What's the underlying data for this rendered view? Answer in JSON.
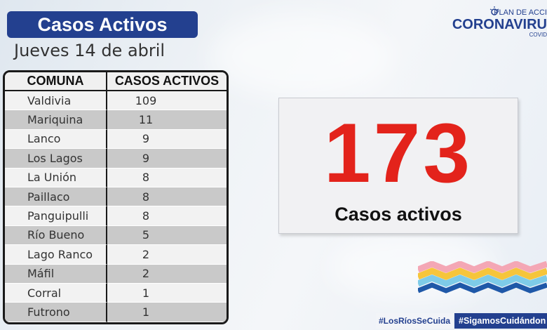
{
  "header": {
    "title": "Casos Activos",
    "date": "Jueves 14 de abril"
  },
  "logo": {
    "top_text": "PLAN DE ACCI",
    "main_text": "CORONAVIRU",
    "sub_text": "COVID"
  },
  "table": {
    "headers": [
      "COMUNA",
      "CASOS ACTIVOS"
    ],
    "rows": [
      {
        "comuna": "Valdivia",
        "casos": "109"
      },
      {
        "comuna": "Mariquina",
        "casos": "11"
      },
      {
        "comuna": "Lanco",
        "casos": "9"
      },
      {
        "comuna": "Los Lagos",
        "casos": "9"
      },
      {
        "comuna": "La Unión",
        "casos": "8"
      },
      {
        "comuna": "Paillaco",
        "casos": "8"
      },
      {
        "comuna": "Panguipulli",
        "casos": "8"
      },
      {
        "comuna": "Río Bueno",
        "casos": "5"
      },
      {
        "comuna": "Lago Ranco",
        "casos": "2"
      },
      {
        "comuna": "Máfil",
        "casos": "2"
      },
      {
        "comuna": "Corral",
        "casos": "1"
      },
      {
        "comuna": "Futrono",
        "casos": "1"
      }
    ]
  },
  "summary": {
    "total": "173",
    "label": "Casos activos"
  },
  "hashtags": {
    "first": "#LosRíosSeCuida",
    "second": "#SigamosCuidándon"
  },
  "colors": {
    "brand_blue": "#23408f",
    "accent_red": "#e3231b",
    "row_light": "#f2f2f2",
    "row_dark": "#c9c9c9"
  }
}
